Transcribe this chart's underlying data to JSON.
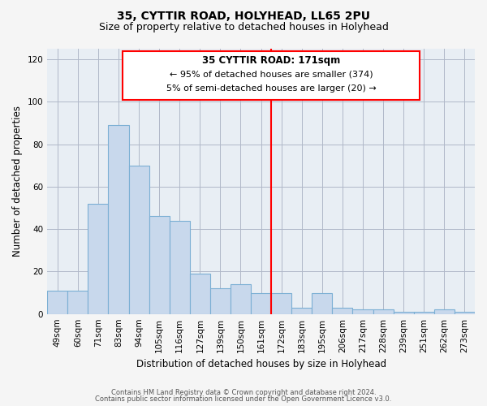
{
  "title": "35, CYTTIR ROAD, HOLYHEAD, LL65 2PU",
  "subtitle": "Size of property relative to detached houses in Holyhead",
  "xlabel": "Distribution of detached houses by size in Holyhead",
  "ylabel": "Number of detached properties",
  "bar_labels": [
    "49sqm",
    "60sqm",
    "71sqm",
    "83sqm",
    "94sqm",
    "105sqm",
    "116sqm",
    "127sqm",
    "139sqm",
    "150sqm",
    "161sqm",
    "172sqm",
    "183sqm",
    "195sqm",
    "206sqm",
    "217sqm",
    "228sqm",
    "239sqm",
    "251sqm",
    "262sqm",
    "273sqm"
  ],
  "bar_values": [
    11,
    11,
    52,
    89,
    70,
    46,
    44,
    19,
    12,
    14,
    10,
    10,
    3,
    10,
    3,
    2,
    2,
    1,
    1,
    2,
    1
  ],
  "bar_color": "#c8d8ec",
  "bar_edge_color": "#7bafd4",
  "reference_line_index": 11,
  "annotation_title": "35 CYTTIR ROAD: 171sqm",
  "annotation_line1": "← 95% of detached houses are smaller (374)",
  "annotation_line2": "5% of semi-detached houses are larger (20) →",
  "ylim": [
    0,
    125
  ],
  "yticks": [
    0,
    20,
    40,
    60,
    80,
    100,
    120
  ],
  "footnote1": "Contains HM Land Registry data © Crown copyright and database right 2024.",
  "footnote2": "Contains public sector information licensed under the Open Government Licence v3.0.",
  "fig_bg_color": "#f5f5f5",
  "plot_bg_color": "#e8eef4",
  "grid_color": "#b0b8c8",
  "title_fontsize": 10,
  "subtitle_fontsize": 9
}
